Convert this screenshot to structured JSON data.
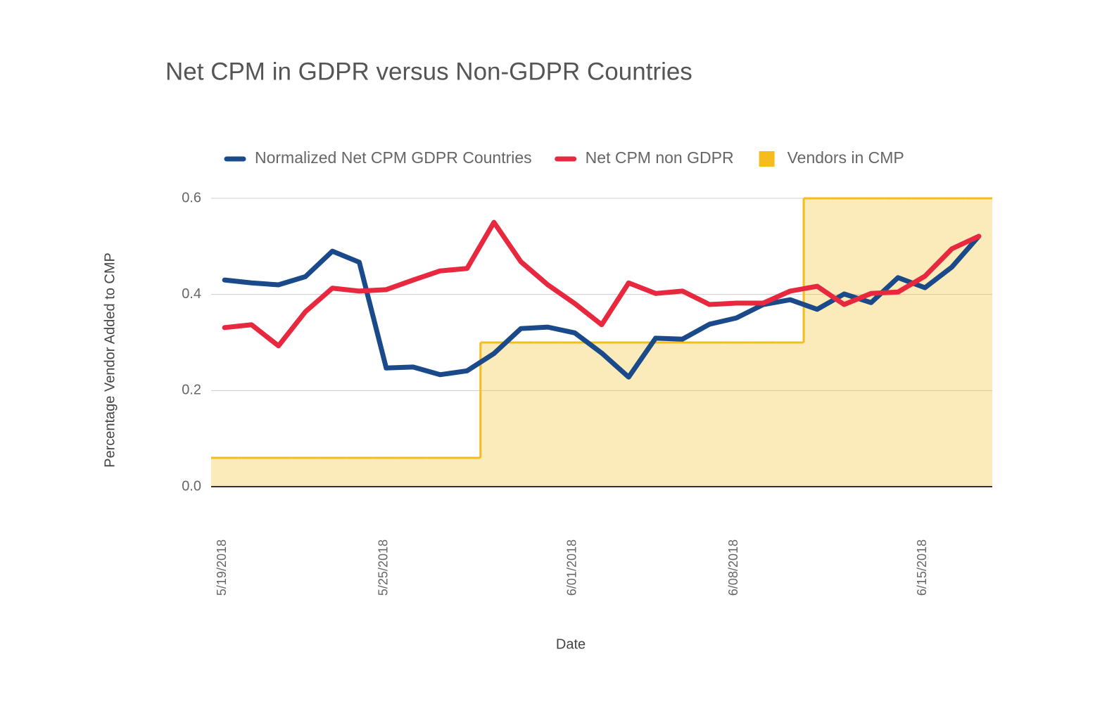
{
  "chart_data": {
    "type": "line",
    "title": "Net CPM in GDPR versus Non-GDPR Countries",
    "x_label": "Date",
    "y_label": "Percentage Vendor Added to CMP",
    "categories": [
      "5/19/2018",
      null,
      null,
      null,
      null,
      null,
      "5/25/2018",
      null,
      null,
      null,
      null,
      null,
      null,
      "6/01/2018",
      null,
      null,
      null,
      null,
      null,
      "6/08/2018",
      null,
      null,
      null,
      null,
      null,
      null,
      "6/15/2018",
      null,
      null
    ],
    "series": [
      {
        "name": "Vendors in CMP",
        "color": "#f5bc1c",
        "type": "area",
        "values": [
          0.06,
          0.06,
          0.06,
          0.06,
          0.06,
          0.06,
          0.06,
          0.06,
          0.06,
          0.06,
          0.3,
          0.3,
          0.3,
          0.3,
          0.3,
          0.3,
          0.3,
          0.3,
          0.3,
          0.3,
          0.3,
          0.3,
          0.6,
          0.6,
          0.6,
          0.6,
          0.6,
          0.6,
          0.6
        ]
      },
      {
        "name": "Normalized Net CPM GDPR Countries",
        "color": "#1a4a8a",
        "type": "line",
        "values": [
          0.43,
          0.424,
          0.42,
          0.437,
          0.49,
          0.467,
          0.247,
          0.249,
          0.233,
          0.241,
          0.277,
          0.329,
          0.332,
          0.32,
          0.278,
          0.228,
          0.309,
          0.307,
          0.338,
          0.351,
          0.379,
          0.389,
          0.369,
          0.401,
          0.383,
          0.435,
          0.414,
          0.457,
          0.521
        ]
      },
      {
        "name": "Net CPM non GDPR",
        "color": "#e8283f",
        "type": "line",
        "values": [
          0.331,
          0.337,
          0.293,
          0.364,
          0.413,
          0.407,
          0.41,
          0.43,
          0.449,
          0.454,
          0.55,
          0.468,
          0.42,
          0.381,
          0.337,
          0.424,
          0.402,
          0.407,
          0.379,
          0.382,
          0.382,
          0.407,
          0.417,
          0.379,
          0.402,
          0.405,
          0.438,
          0.495,
          0.521
        ]
      }
    ],
    "legend_order": [
      1,
      2,
      0
    ],
    "legend_position": "top",
    "ylim": [
      0,
      0.6
    ],
    "yticks": [
      {
        "value": 0,
        "label": "0.0"
      },
      0.2,
      0.4,
      0.6
    ],
    "grid": true
  }
}
